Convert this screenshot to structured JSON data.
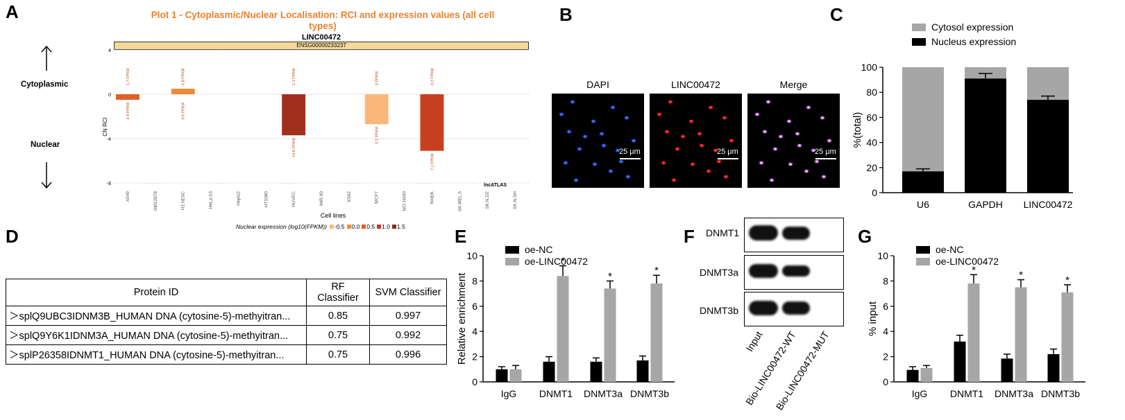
{
  "panels": {
    "A": "A",
    "B": "B",
    "C": "C",
    "D": "D",
    "E": "E",
    "F": "F",
    "G": "G"
  },
  "panelA": {
    "title_line1": "Plot 1 - Cytoplasmic/Nuclear Localisation: RCI and expression values (all cell",
    "title_line2": "types)",
    "gene": "LINC00472",
    "ensembl": "ENSG00000233237",
    "cytoplasmic_label": "Cytoplasmic",
    "nuclear_label": "Nuclear",
    "watermark": "lncATLAS",
    "legend_label": "Nuclear expression (log10(FPKM))",
    "legend_items": [
      {
        "label": "-0.5",
        "color": "#f9b87a"
      },
      {
        "label": "0.0",
        "color": "#f28a3c"
      },
      {
        "label": "0.5",
        "color": "#e06028"
      },
      {
        "label": "1.0",
        "color": "#c23b22"
      },
      {
        "label": "1.5",
        "color": "#8e2a1a"
      }
    ],
    "chart_data": {
      "type": "bar",
      "xlabel": "Cell lines",
      "ylabel": "CN RCI",
      "ylim": [
        -8,
        4
      ],
      "yticks": [
        4,
        0,
        -4,
        -8
      ],
      "categories": [
        "A549",
        "GM12878",
        "H1.hESC",
        "HeLa.S3",
        "HepG2",
        "HT1080",
        "HUVEC",
        "IMR.90",
        "K562",
        "MCF7",
        "NCI.H460",
        "NHEK",
        "SK.MEL.5",
        "SK.N.DZ",
        "SK.N.SH"
      ],
      "values": [
        -0.5,
        null,
        0.5,
        null,
        null,
        null,
        -3.7,
        null,
        null,
        -2.7,
        null,
        -5.1,
        null,
        null,
        null
      ],
      "bar_colors": [
        "#e06028",
        null,
        "#f28a3c",
        null,
        null,
        null,
        "#a0301e",
        null,
        null,
        "#f9b87a",
        null,
        "#c8401f",
        null,
        null,
        null
      ],
      "top_labels": [
        "1.7 FPKM",
        null,
        "0.8 FPKM",
        null,
        null,
        null,
        "1.1 FPKM",
        null,
        null,
        "0 FPKM",
        null,
        "0.2 FPKM",
        null,
        null,
        null
      ],
      "bottom_labels": [
        "2.4 FPKM",
        null,
        "0.6 FPKM",
        null,
        null,
        null,
        "14.6 FPKM",
        null,
        null,
        "0.1 FPKM",
        null,
        "7.1 FPKM",
        null,
        null,
        null
      ]
    }
  },
  "panelB": {
    "titles": [
      "DAPI",
      "LINC00472",
      "Merge"
    ],
    "scale": "25 μm"
  },
  "panelC": {
    "chart_data": {
      "type": "bar",
      "stacked": true,
      "categories": [
        "U6",
        "GAPDH",
        "LINC00472"
      ],
      "series": [
        {
          "name": "Cytosol expression",
          "values": [
            83,
            9,
            26
          ],
          "color": "#a6a6a6"
        },
        {
          "name": "Nucleus expression",
          "values": [
            17,
            91,
            74
          ],
          "color": "#000000"
        }
      ],
      "nucleus_error": [
        2,
        4,
        3
      ],
      "ylabel": "%(total)",
      "ylim": [
        0,
        100
      ],
      "yticks": [
        0,
        20,
        40,
        60,
        80,
        100
      ]
    }
  },
  "panelD": {
    "headers": [
      "Protein ID",
      "RF Classifier",
      "SVM Classifier"
    ],
    "rows": [
      [
        "＞splQ9UBC3IDNM3B_HUMAN DNA (cytosine-5)-methyitran...",
        "0.85",
        "0.997"
      ],
      [
        "＞splQ9Y6K1IDNM3A_HUMAN DNA (cytosine-5)-methyitran...",
        "0.75",
        "0.992"
      ],
      [
        "＞splP26358IDNMT1_HUMAN DNA (cytosine-5)-methyitran...",
        "0.75",
        "0.996"
      ]
    ]
  },
  "panelE": {
    "chart_data": {
      "type": "bar",
      "categories": [
        "IgG",
        "DNMT1",
        "DNMT3a",
        "DNMT3b"
      ],
      "series": [
        {
          "name": "oe-NC",
          "values": [
            1.0,
            1.6,
            1.6,
            1.7
          ],
          "errors": [
            0.2,
            0.4,
            0.3,
            0.35
          ],
          "color": "#000000"
        },
        {
          "name": "oe-LINC00472",
          "values": [
            1.0,
            8.4,
            7.4,
            7.8
          ],
          "errors": [
            0.3,
            0.8,
            0.6,
            0.65
          ],
          "color": "#a6a6a6"
        }
      ],
      "significance": [
        "",
        "*",
        "*",
        "*"
      ],
      "ylabel": "Relative enrichment",
      "ylim": [
        0,
        10
      ],
      "yticks": [
        0,
        2,
        4,
        6,
        8,
        10
      ]
    }
  },
  "panelF": {
    "proteins": [
      "DNMT1",
      "DNMT3a",
      "DNMT3b"
    ],
    "lanes": [
      "Input",
      "Bio-LINC00472-WT",
      "Bio-LINC00472-MUT"
    ]
  },
  "panelG": {
    "chart_data": {
      "type": "bar",
      "categories": [
        "IgG",
        "DNMT1",
        "DNMT3a",
        "DNMT3b"
      ],
      "series": [
        {
          "name": "oe-NC",
          "values": [
            0.95,
            3.2,
            1.85,
            2.2
          ],
          "errors": [
            0.25,
            0.5,
            0.35,
            0.4
          ],
          "color": "#000000"
        },
        {
          "name": "oe-LINC00472",
          "values": [
            1.1,
            7.8,
            7.5,
            7.1
          ],
          "errors": [
            0.2,
            0.7,
            0.6,
            0.6
          ],
          "color": "#a6a6a6"
        }
      ],
      "significance": [
        "",
        "*",
        "*",
        "*"
      ],
      "ylabel": "% input",
      "ylim": [
        0,
        10
      ],
      "yticks": [
        0,
        2,
        4,
        6,
        8,
        10
      ]
    }
  }
}
